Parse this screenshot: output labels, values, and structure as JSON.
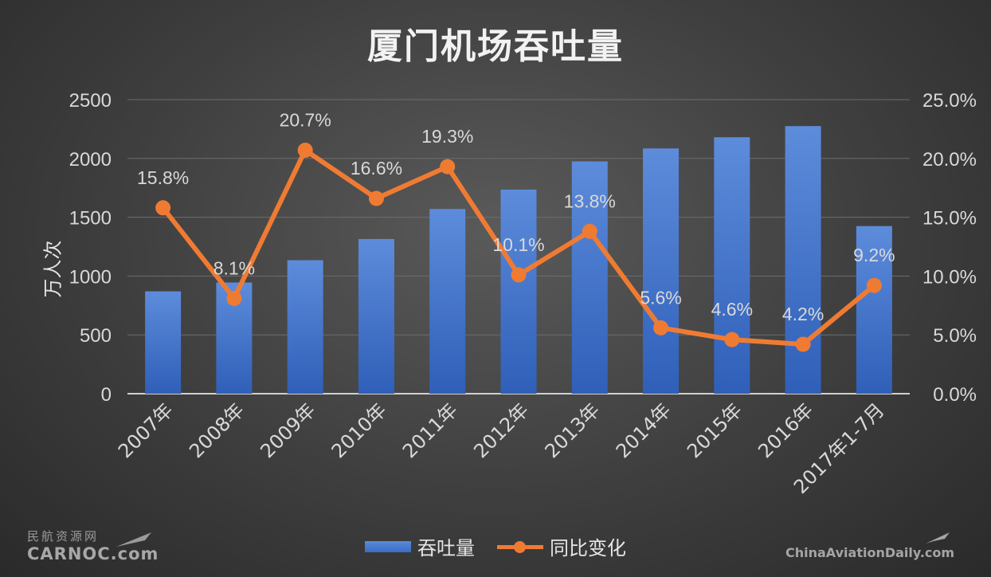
{
  "title": "厦门机场吞吐量",
  "chart_data": {
    "type": "bar",
    "title": "厦门机场吞吐量",
    "categories": [
      "2007年",
      "2008年",
      "2009年",
      "2010年",
      "2011年",
      "2012年",
      "2013年",
      "2014年",
      "2015年",
      "2016年",
      "2017年1-7月"
    ],
    "series": [
      {
        "name": "吞吐量",
        "type": "bar",
        "axis": "left",
        "color": "#4472c4",
        "values": [
          870,
          945,
          1135,
          1315,
          1570,
          1735,
          1975,
          2085,
          2180,
          2275,
          1425
        ]
      },
      {
        "name": "同比变化",
        "type": "line",
        "axis": "right",
        "color": "#ef7b33",
        "values": [
          15.8,
          8.1,
          20.7,
          16.6,
          19.3,
          10.1,
          13.8,
          5.6,
          4.6,
          4.2,
          9.2
        ],
        "labels": [
          "15.8%",
          "8.1%",
          "20.7%",
          "16.6%",
          "19.3%",
          "10.1%",
          "13.8%",
          "5.6%",
          "4.6%",
          "4.2%",
          "9.2%"
        ]
      }
    ],
    "ylabel": "万人次",
    "ylim": [
      0,
      2500
    ],
    "y_ticks": [
      "0",
      "500",
      "1000",
      "1500",
      "2000",
      "2500"
    ],
    "y2lim": [
      0,
      25
    ],
    "y2_ticks": [
      "0.0%",
      "5.0%",
      "10.0%",
      "15.0%",
      "20.0%",
      "25.0%"
    ],
    "grid": true,
    "legend": "bottom"
  },
  "watermarks": {
    "left_cn": "民航资源网",
    "left_en": "CARNOC.com",
    "right_en": "ChinaAviationDaily.com"
  }
}
